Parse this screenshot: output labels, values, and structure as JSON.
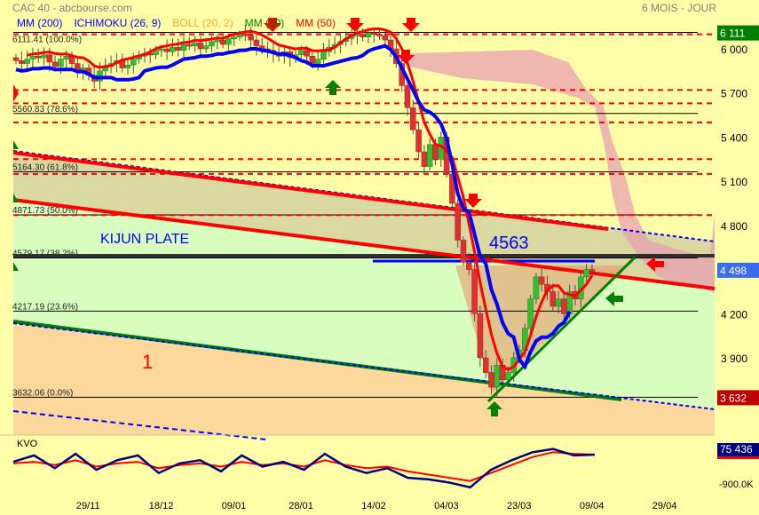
{
  "header": {
    "title": "CAC 40 - abcbourse.com",
    "period": "6 MOIS - JOUR"
  },
  "legend": [
    {
      "label": "MM (200)",
      "color": "#0000ff"
    },
    {
      "label": "ICHIMOKU (26, 9)",
      "color": "#0000ff"
    },
    {
      "label": "BOLL (20, 2)",
      "color": "#ffa040"
    },
    {
      "label": "MM (20)",
      "color": "#008000"
    },
    {
      "label": "MM (50)",
      "color": "#ff0000"
    }
  ],
  "annotations": {
    "kijun_plate": "KIJUN PLATE",
    "level_4563": "4563",
    "wave_label": "1"
  },
  "chart_data": {
    "type": "candlestick",
    "ylim": [
      3400,
      6200
    ],
    "y_ticks": [
      "6 000",
      "5 700",
      "5 400",
      "5 100",
      "4 800",
      "4 200",
      "3 900"
    ],
    "y_tick_values": [
      6000,
      5700,
      5400,
      5100,
      4800,
      4200,
      3900
    ],
    "x_ticks": [
      "29/11",
      "18/12",
      "09/01",
      "28/01",
      "14/02",
      "04/03",
      "23/03",
      "09/04",
      "29/04"
    ],
    "x_tick_index": [
      13,
      26,
      39,
      51,
      64,
      77,
      90,
      103,
      116
    ],
    "price_badges": [
      {
        "label": "6 111",
        "value": 6111,
        "color": "#008000"
      },
      {
        "label": "4 498",
        "value": 4498,
        "color": "#3a6cf0"
      },
      {
        "label": "3 632",
        "value": 3632,
        "color": "#c00000"
      }
    ],
    "fibonacci": [
      {
        "label": "6111.41  (100.0%)",
        "value": 6111.41
      },
      {
        "label": "5560.83  (78.6%)",
        "value": 5560.83
      },
      {
        "label": "5164.30  (61.8%)",
        "value": 5164.3
      },
      {
        "label": "4871.73  (50.0%)",
        "value": 4871.73
      },
      {
        "label": "4579.17  (38.2%)",
        "value": 4579.17
      },
      {
        "label": "4217.19  (23.6%)",
        "value": 4217.19
      },
      {
        "label": "3632.06  (0.0%)",
        "value": 3632.06
      }
    ],
    "resistance_levels": [
      6111,
      5720,
      5630,
      5500,
      5250,
      5150,
      4870
    ],
    "closes": [
      5920,
      5900,
      5930,
      5950,
      5940,
      5960,
      5910,
      5880,
      5930,
      5950,
      5900,
      5850,
      5870,
      5820,
      5780,
      5850,
      5880,
      5900,
      5920,
      5870,
      5890,
      5930,
      5950,
      5970,
      5960,
      5990,
      6000,
      5980,
      6010,
      5990,
      6030,
      6020,
      6040,
      6000,
      6020,
      6050,
      6060,
      6030,
      6070,
      6080,
      6100,
      6090,
      6060,
      6020,
      6000,
      5990,
      5970,
      5950,
      5980,
      5940,
      5960,
      5990,
      5950,
      5900,
      5930,
      5980,
      6010,
      6030,
      6050,
      6070,
      6090,
      6100,
      6080,
      6110,
      6100,
      6090,
      6060,
      6000,
      5900,
      5750,
      5600,
      5450,
      5300,
      5200,
      5350,
      5250,
      5400,
      5150,
      4950,
      4700,
      4550,
      4500,
      4200,
      3900,
      3800,
      3700,
      3850,
      3750,
      3800,
      3900,
      3950,
      4100,
      4300,
      4450,
      4400,
      4350,
      4250,
      4300,
      4200,
      4350,
      4300,
      4450,
      4500,
      4498
    ],
    "kvo": {
      "label": "KVO",
      "badge": "75 436",
      "badge_value": 75,
      "min_label": "-900.0K",
      "signal": [
        -200,
        -150,
        -250,
        -100,
        -300,
        -200,
        -150,
        -350,
        -250,
        -200,
        -300,
        -150,
        -250,
        -200,
        -300,
        -100,
        -250,
        -350,
        -300,
        -450,
        -550,
        -650,
        -750,
        -500,
        -250,
        0,
        150,
        100,
        75
      ],
      "line": [
        -150,
        50,
        -350,
        100,
        -400,
        -100,
        50,
        -500,
        -200,
        -100,
        -450,
        50,
        -300,
        -150,
        -400,
        100,
        -300,
        -500,
        -350,
        -650,
        -700,
        -800,
        -950,
        -400,
        -100,
        150,
        250,
        50,
        75
      ]
    }
  }
}
